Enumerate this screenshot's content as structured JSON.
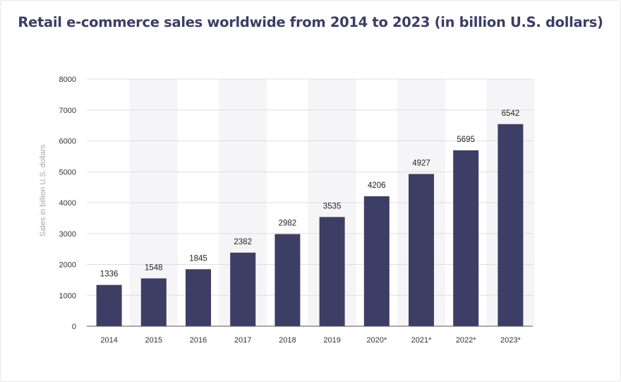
{
  "chart_data": {
    "type": "bar",
    "title": "Retail e-commerce sales worldwide from 2014 to 2023 (in billion U.S. dollars)",
    "xlabel": "",
    "ylabel": "Sales in billion U.S. dollars",
    "categories": [
      "2014",
      "2015",
      "2016",
      "2017",
      "2018",
      "2019",
      "2020*",
      "2021*",
      "2022*",
      "2023*"
    ],
    "values": [
      1336,
      1548,
      1845,
      2382,
      2982,
      3535,
      4206,
      4927,
      5695,
      6542
    ],
    "data_labels": [
      "1336",
      "1548",
      "1845",
      "2382",
      "2982",
      "3535",
      "4206",
      "4927",
      "5695",
      "6542"
    ],
    "ylim": [
      0,
      8000
    ],
    "yticks": [
      0,
      1000,
      2000,
      3000,
      4000,
      5000,
      6000,
      7000,
      8000
    ],
    "ytick_labels": [
      "0",
      "1000",
      "2000",
      "3000",
      "4000",
      "5000",
      "6000",
      "7000",
      "8000"
    ],
    "grid": true,
    "legend": "none",
    "colors": {
      "bar": "#3c3e66",
      "title": "#3c3e66",
      "band": "#f5f5f7",
      "grid": "#dedede",
      "axis": "#555555"
    }
  }
}
